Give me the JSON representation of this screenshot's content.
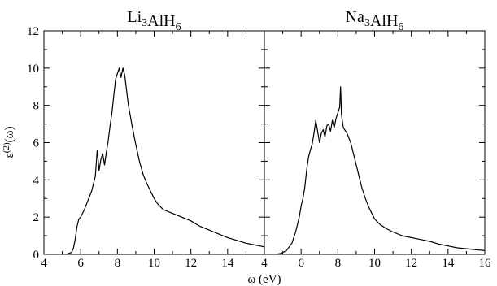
{
  "chart_data": {
    "type": "line",
    "ylabel": "ε(2)(ω)",
    "xlabel": "ω (eV)",
    "ylim": [
      0,
      12
    ],
    "yticks": [
      0,
      2,
      4,
      6,
      8,
      10,
      12
    ],
    "grid": false,
    "legend": "none",
    "line_color": "#000000",
    "panels": [
      {
        "title": "Li3AlH6",
        "title_base": [
          "Li",
          "AlH"
        ],
        "title_subs": [
          "3",
          "6"
        ],
        "xlim": [
          4,
          16
        ],
        "xticks": [
          4,
          6,
          8,
          10,
          12,
          14
        ],
        "series": [
          {
            "x": [
              5.2,
              5.5,
              5.6,
              5.7,
              5.8,
              5.9,
              6.0,
              6.1,
              6.2,
              6.4,
              6.6,
              6.8,
              6.9,
              7.0,
              7.1,
              7.2,
              7.3,
              7.4,
              7.5,
              7.6,
              7.7,
              7.8,
              7.9,
              8.0,
              8.1,
              8.2,
              8.3,
              8.4,
              8.5,
              8.6,
              8.8,
              9.0,
              9.2,
              9.4,
              9.6,
              9.8,
              10.0,
              10.2,
              10.5,
              11.0,
              11.5,
              12.0,
              12.5,
              13.0,
              13.5,
              14.0,
              14.5,
              15.0,
              15.5,
              16.0
            ],
            "y": [
              0,
              0.1,
              0.3,
              0.8,
              1.5,
              1.9,
              2.0,
              2.2,
              2.4,
              2.9,
              3.4,
              4.2,
              5.6,
              4.5,
              5.1,
              5.4,
              4.8,
              5.5,
              6.1,
              6.9,
              7.6,
              8.5,
              9.4,
              9.7,
              10.0,
              9.5,
              10.0,
              9.6,
              8.8,
              8.0,
              6.9,
              5.9,
              5.0,
              4.3,
              3.8,
              3.4,
              3.0,
              2.7,
              2.4,
              2.2,
              2.0,
              1.8,
              1.5,
              1.3,
              1.1,
              0.9,
              0.75,
              0.6,
              0.5,
              0.4
            ]
          }
        ]
      },
      {
        "title": "Na3AlH6",
        "title_base": [
          "Na",
          "AlH"
        ],
        "title_subs": [
          "3",
          "6"
        ],
        "xlim": [
          4,
          16
        ],
        "xticks": [
          4,
          6,
          8,
          10,
          12,
          14,
          16
        ],
        "series": [
          {
            "x": [
              4.6,
              4.9,
              5.2,
              5.5,
              5.7,
              5.9,
              6.0,
              6.1,
              6.2,
              6.3,
              6.4,
              6.5,
              6.6,
              6.7,
              6.8,
              6.9,
              7.0,
              7.1,
              7.2,
              7.3,
              7.4,
              7.5,
              7.6,
              7.7,
              7.8,
              7.9,
              8.0,
              8.1,
              8.15,
              8.2,
              8.3,
              8.5,
              8.7,
              8.9,
              9.1,
              9.3,
              9.5,
              9.7,
              9.8,
              10.0,
              10.3,
              10.6,
              11.0,
              11.5,
              12.0,
              12.5,
              13.0,
              13.5,
              14.0,
              14.5,
              15.0,
              15.5,
              16.0
            ],
            "y": [
              0,
              0.05,
              0.2,
              0.6,
              1.2,
              2.0,
              2.6,
              3.0,
              3.6,
              4.5,
              5.2,
              5.6,
              5.9,
              6.5,
              7.2,
              6.6,
              6.0,
              6.5,
              6.7,
              6.3,
              6.9,
              7.0,
              6.6,
              7.2,
              6.8,
              7.3,
              7.6,
              7.9,
              9.0,
              7.5,
              6.8,
              6.5,
              6.0,
              5.2,
              4.4,
              3.6,
              3.0,
              2.5,
              2.3,
              1.9,
              1.6,
              1.4,
              1.2,
              1.0,
              0.9,
              0.8,
              0.7,
              0.55,
              0.45,
              0.35,
              0.3,
              0.25,
              0.2
            ]
          }
        ]
      }
    ]
  }
}
